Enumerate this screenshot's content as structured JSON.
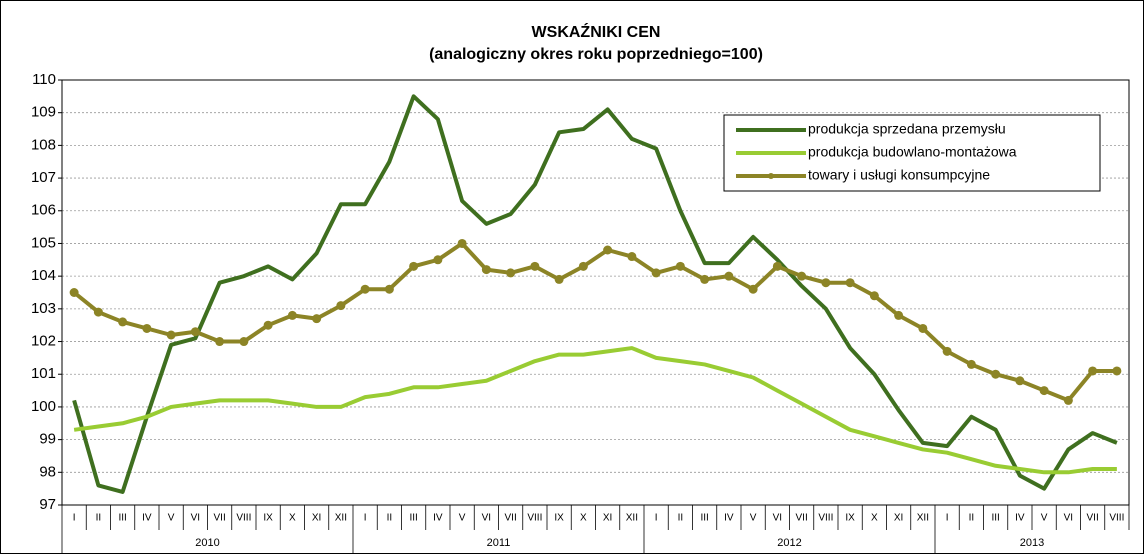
{
  "chart_data": {
    "type": "line",
    "title": "WSKAŹNIKI CEN",
    "subtitle": "(analogiczny okres roku poprzedniego=100)",
    "categories": [
      "I",
      "II",
      "III",
      "IV",
      "V",
      "VI",
      "VII",
      "VIII",
      "IX",
      "X",
      "XI",
      "XII",
      "I",
      "II",
      "III",
      "IV",
      "V",
      "VI",
      "VII",
      "VIII",
      "IX",
      "X",
      "XI",
      "XII",
      "I",
      "II",
      "III",
      "IV",
      "V",
      "VI",
      "VII",
      "VIII",
      "IX",
      "X",
      "XI",
      "XII",
      "I",
      "II",
      "III",
      "IV",
      "V",
      "VI",
      "VII",
      "VIII"
    ],
    "x_groups": [
      "2010",
      "2011",
      "2012",
      "2013"
    ],
    "series": [
      {
        "name": "produkcja sprzedana przemysłu",
        "color": "#3f6f1f",
        "markers": false,
        "values": [
          100.2,
          97.6,
          97.4,
          99.7,
          101.9,
          102.1,
          103.8,
          104.0,
          104.3,
          103.9,
          104.7,
          106.2,
          106.2,
          107.5,
          109.5,
          108.8,
          106.3,
          105.6,
          105.9,
          106.8,
          108.4,
          108.5,
          109.1,
          108.2,
          107.9,
          106.0,
          104.4,
          104.4,
          105.2,
          104.5,
          103.7,
          103.0,
          101.8,
          101.0,
          99.9,
          98.9,
          98.8,
          99.7,
          99.3,
          97.9,
          97.5,
          98.7,
          99.2,
          98.9
        ]
      },
      {
        "name": "produkcja budowlano-montażowa",
        "color": "#99cc33",
        "markers": false,
        "values": [
          99.3,
          99.4,
          99.5,
          99.7,
          100.0,
          100.1,
          100.2,
          100.2,
          100.2,
          100.1,
          100.0,
          100.0,
          100.3,
          100.4,
          100.6,
          100.6,
          100.7,
          100.8,
          101.1,
          101.4,
          101.6,
          101.6,
          101.7,
          101.8,
          101.5,
          101.4,
          101.3,
          101.1,
          100.9,
          100.5,
          100.1,
          99.7,
          99.3,
          99.1,
          98.9,
          98.7,
          98.6,
          98.4,
          98.2,
          98.1,
          98.0,
          98.0,
          98.1,
          98.1
        ]
      },
      {
        "name": "towary i usługi konsumpcyjne",
        "color": "#8c8426",
        "markers": true,
        "values": [
          103.5,
          102.9,
          102.6,
          102.4,
          102.2,
          102.3,
          102.0,
          102.0,
          102.5,
          102.8,
          102.7,
          103.1,
          103.6,
          103.6,
          104.3,
          104.5,
          105.0,
          104.2,
          104.1,
          104.3,
          103.9,
          104.3,
          104.8,
          104.6,
          104.1,
          104.3,
          103.9,
          104.0,
          103.6,
          104.3,
          104.0,
          103.8,
          103.8,
          103.4,
          102.8,
          102.4,
          101.7,
          101.3,
          101.0,
          100.8,
          100.5,
          100.2,
          101.1,
          101.1
        ]
      }
    ],
    "ylim": [
      97,
      110
    ],
    "yticks": [
      97,
      98,
      99,
      100,
      101,
      102,
      103,
      104,
      105,
      106,
      107,
      108,
      109,
      110
    ],
    "grid": true,
    "legend": "top-right"
  }
}
